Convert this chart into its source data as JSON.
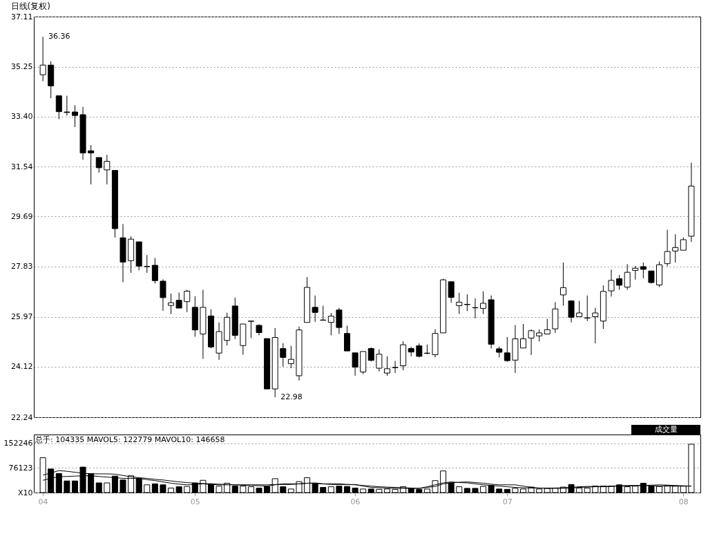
{
  "chart_data": [
    {
      "type": "candlestick",
      "title": "日线(复权)",
      "categories": [
        "04",
        null,
        null,
        null,
        null,
        null,
        null,
        null,
        null,
        null,
        null,
        null,
        null,
        null,
        null,
        null,
        null,
        null,
        null,
        "05",
        null,
        null,
        null,
        null,
        null,
        null,
        null,
        null,
        null,
        null,
        null,
        null,
        null,
        null,
        null,
        null,
        null,
        null,
        null,
        "06",
        null,
        null,
        null,
        null,
        null,
        null,
        null,
        null,
        null,
        null,
        null,
        null,
        null,
        null,
        null,
        null,
        null,
        null,
        "07",
        null,
        null,
        null,
        null,
        null,
        null,
        null,
        null,
        null,
        null,
        null,
        null,
        null,
        null,
        null,
        null,
        null,
        null,
        null,
        null,
        null,
        "08",
        null
      ],
      "ohlc": [
        [
          34.95,
          36.36,
          34.71,
          35.31
        ],
        [
          35.31,
          35.45,
          34.08,
          34.54
        ],
        [
          34.17,
          34.17,
          33.3,
          33.58
        ],
        [
          33.57,
          34.17,
          33.44,
          33.55
        ],
        [
          33.57,
          33.82,
          33.01,
          33.44
        ],
        [
          33.47,
          33.76,
          31.8,
          32.05
        ],
        [
          32.13,
          32.34,
          30.88,
          32.05
        ],
        [
          31.88,
          31.88,
          31.32,
          31.5
        ],
        [
          31.42,
          31.98,
          30.88,
          31.74
        ],
        [
          31.4,
          31.4,
          28.91,
          29.24
        ],
        [
          28.9,
          29.41,
          27.25,
          28.0
        ],
        [
          28.05,
          28.95,
          27.6,
          28.85
        ],
        [
          28.75,
          28.75,
          27.69,
          27.85
        ],
        [
          27.83,
          28.26,
          27.6,
          27.84
        ],
        [
          27.88,
          28.15,
          27.2,
          27.31
        ],
        [
          27.29,
          27.36,
          26.19,
          26.68
        ],
        [
          26.39,
          26.83,
          26.07,
          26.49
        ],
        [
          26.58,
          26.87,
          26.29,
          26.29
        ],
        [
          26.53,
          26.97,
          26.14,
          26.92
        ],
        [
          26.32,
          26.73,
          25.23,
          25.48
        ],
        [
          25.33,
          26.97,
          24.41,
          26.32
        ],
        [
          26.0,
          26.24,
          24.8,
          24.85
        ],
        [
          24.62,
          25.76,
          24.37,
          25.42
        ],
        [
          25.09,
          26.12,
          24.9,
          25.95
        ],
        [
          26.37,
          26.68,
          25.14,
          25.28
        ],
        [
          24.9,
          25.7,
          24.56,
          25.7
        ],
        [
          25.8,
          25.81,
          25.18,
          25.81
        ],
        [
          25.65,
          25.69,
          25.28,
          25.38
        ],
        [
          25.16,
          25.16,
          23.29,
          23.29
        ],
        [
          23.29,
          25.55,
          22.98,
          25.2
        ],
        [
          24.79,
          24.99,
          24.12,
          24.46
        ],
        [
          24.23,
          24.89,
          24.06,
          24.39
        ],
        [
          23.78,
          25.61,
          23.6,
          25.48
        ],
        [
          25.76,
          27.44,
          25.76,
          27.06
        ],
        [
          26.32,
          26.76,
          25.78,
          26.13
        ],
        [
          25.85,
          26.38,
          25.84,
          25.84
        ],
        [
          25.76,
          26.11,
          25.28,
          25.99
        ],
        [
          26.22,
          26.3,
          25.33,
          25.57
        ],
        [
          25.35,
          25.64,
          24.7,
          24.7
        ],
        [
          24.63,
          24.63,
          23.78,
          24.1
        ],
        [
          23.92,
          24.68,
          23.84,
          24.68
        ],
        [
          24.79,
          24.83,
          24.31,
          24.35
        ],
        [
          24.06,
          24.76,
          23.94,
          24.58
        ],
        [
          23.88,
          24.5,
          23.78,
          24.04
        ],
        [
          24.08,
          24.33,
          23.88,
          24.09
        ],
        [
          24.15,
          25.06,
          23.98,
          24.93
        ],
        [
          24.79,
          24.85,
          24.5,
          24.66
        ],
        [
          24.89,
          24.98,
          24.46,
          24.5
        ],
        [
          24.61,
          24.94,
          24.58,
          24.62
        ],
        [
          24.56,
          25.51,
          24.46,
          25.35
        ],
        [
          25.37,
          27.38,
          25.37,
          27.34
        ],
        [
          27.27,
          27.27,
          26.49,
          26.69
        ],
        [
          26.38,
          26.86,
          26.07,
          26.51
        ],
        [
          26.43,
          26.8,
          26.18,
          26.42
        ],
        [
          26.31,
          26.65,
          25.91,
          26.3
        ],
        [
          26.28,
          26.91,
          26.07,
          26.47
        ],
        [
          26.6,
          26.76,
          24.79,
          24.95
        ],
        [
          24.78,
          24.86,
          24.46,
          24.65
        ],
        [
          24.63,
          25.22,
          24.3,
          24.34
        ],
        [
          24.36,
          25.66,
          23.88,
          25.15
        ],
        [
          24.81,
          25.7,
          24.81,
          25.15
        ],
        [
          25.18,
          25.5,
          24.55,
          25.45
        ],
        [
          25.26,
          25.5,
          25.05,
          25.37
        ],
        [
          25.33,
          25.89,
          25.33,
          25.49
        ],
        [
          25.52,
          26.51,
          25.37,
          26.26
        ],
        [
          26.78,
          27.98,
          26.38,
          27.05
        ],
        [
          26.56,
          26.56,
          25.76,
          25.95
        ],
        [
          25.97,
          26.56,
          25.97,
          26.11
        ],
        [
          25.92,
          26.76,
          25.81,
          25.93
        ],
        [
          25.97,
          26.3,
          24.98,
          26.11
        ],
        [
          25.81,
          27.13,
          25.52,
          26.91
        ],
        [
          26.93,
          27.72,
          26.72,
          27.32
        ],
        [
          27.38,
          27.52,
          26.97,
          27.14
        ],
        [
          27.07,
          27.92,
          26.97,
          27.62
        ],
        [
          27.69,
          27.86,
          27.35,
          27.77
        ],
        [
          27.83,
          27.98,
          27.4,
          27.73
        ],
        [
          27.67,
          27.67,
          27.2,
          27.24
        ],
        [
          27.15,
          28.02,
          27.07,
          27.9
        ],
        [
          27.94,
          29.2,
          27.84,
          28.39
        ],
        [
          28.41,
          29.03,
          27.98,
          28.54
        ],
        [
          28.44,
          28.91,
          28.44,
          28.83
        ],
        [
          28.96,
          31.69,
          28.75,
          30.82
        ]
      ],
      "color": "#000000",
      "ylim": [
        22.24,
        37.11
      ],
      "yticks": [
        {
          "value": 22.24,
          "label": "22.24"
        },
        {
          "value": 24.12,
          "label": "24.12"
        },
        {
          "value": 25.97,
          "label": "25.97"
        },
        {
          "value": 27.83,
          "label": "27.83"
        },
        {
          "value": 29.69,
          "label": "29.69"
        },
        {
          "value": 31.54,
          "label": "31.54"
        },
        {
          "value": 33.4,
          "label": "33.40"
        },
        {
          "value": 35.25,
          "label": "35.25"
        },
        {
          "value": 37.11,
          "label": "37.11"
        }
      ],
      "grid": "y",
      "tick_labels": "y",
      "annotations": [
        "36.36",
        "22.98"
      ]
    },
    {
      "type": "bar",
      "categories": [
        "04",
        null,
        null,
        null,
        null,
        null,
        null,
        null,
        null,
        null,
        null,
        null,
        null,
        null,
        null,
        null,
        null,
        null,
        null,
        "05",
        null,
        null,
        null,
        null,
        null,
        null,
        null,
        null,
        null,
        null,
        null,
        null,
        null,
        null,
        null,
        null,
        null,
        null,
        null,
        "06",
        null,
        null,
        null,
        null,
        null,
        null,
        null,
        null,
        null,
        null,
        null,
        null,
        null,
        null,
        null,
        null,
        null,
        null,
        "07",
        null,
        null,
        null,
        null,
        null,
        null,
        null,
        null,
        null,
        null,
        null,
        null,
        null,
        null,
        null,
        null,
        null,
        null,
        null,
        null,
        null,
        "08",
        null
      ],
      "series": [
        {
          "type": "bar",
          "values": [
            108000,
            73000,
            59000,
            36000,
            36000,
            79000,
            59000,
            30000,
            30000,
            51000,
            39000,
            52000,
            44000,
            24000,
            27000,
            24000,
            14000,
            18000,
            19000,
            30000,
            38000,
            27000,
            20000,
            29000,
            20000,
            20000,
            18000,
            14000,
            19000,
            43000,
            18000,
            11000,
            34000,
            46000,
            27000,
            16000,
            18000,
            20000,
            19000,
            14000,
            11000,
            11000,
            10000,
            11000,
            10000,
            18000,
            13000,
            10000,
            11000,
            37000,
            67000,
            30000,
            18000,
            13000,
            13000,
            19000,
            22000,
            11000,
            10000,
            13000,
            11000,
            17000,
            11000,
            13000,
            14000,
            17000,
            25000,
            14000,
            14000,
            20000,
            20000,
            20000,
            24000,
            18000,
            20000,
            29000,
            20000,
            19000,
            22000,
            20000,
            20000,
            150000
          ],
          "colors": [
            "#ffffff",
            "#000000",
            "#000000",
            "#000000",
            "#000000",
            "#000000",
            "#000000",
            "#000000",
            "#ffffff",
            "#000000",
            "#000000",
            "#ffffff",
            "#000000",
            "#ffffff",
            "#000000",
            "#000000",
            "#ffffff",
            "#000000",
            "#ffffff",
            "#000000",
            "#ffffff",
            "#000000",
            "#ffffff",
            "#ffffff",
            "#000000",
            "#ffffff",
            "#ffffff",
            "#000000",
            "#000000",
            "#ffffff",
            "#000000",
            "#ffffff",
            "#ffffff",
            "#ffffff",
            "#000000",
            "#000000",
            "#ffffff",
            "#000000",
            "#000000",
            "#000000",
            "#ffffff",
            "#000000",
            "#ffffff",
            "#ffffff",
            "#ffffff",
            "#ffffff",
            "#000000",
            "#000000",
            "#ffffff",
            "#ffffff",
            "#ffffff",
            "#000000",
            "#ffffff",
            "#000000",
            "#000000",
            "#ffffff",
            "#000000",
            "#000000",
            "#000000",
            "#ffffff",
            "#ffffff",
            "#ffffff",
            "#ffffff",
            "#ffffff",
            "#ffffff",
            "#ffffff",
            "#000000",
            "#ffffff",
            "#ffffff",
            "#ffffff",
            "#ffffff",
            "#ffffff",
            "#000000",
            "#ffffff",
            "#ffffff",
            "#000000",
            "#000000",
            "#ffffff",
            "#ffffff",
            "#ffffff",
            "#ffffff",
            "#ffffff"
          ]
        },
        {
          "type": "line",
          "color": "#000000",
          "values": [
            54000,
            61000,
            68000,
            66000,
            63000,
            60000,
            58000,
            58000,
            58000,
            57000,
            53000,
            49000,
            46000,
            44000,
            41000,
            39000,
            36000,
            33000,
            31000,
            29000,
            28000,
            27000,
            26000,
            25000,
            24000,
            24000,
            24000,
            24000,
            24000,
            25000,
            25000,
            25000,
            27000,
            29000,
            28000,
            27000,
            27000,
            27000,
            25000,
            24000,
            22000,
            20000,
            18000,
            17000,
            16000,
            15000,
            14000,
            13000,
            16000,
            19000,
            27000,
            30000,
            32000,
            33000,
            31000,
            29000,
            26000,
            24000,
            24000,
            24000,
            20000,
            16000,
            14000,
            13000,
            13000,
            13000,
            14000,
            16000,
            17000,
            18000,
            18000,
            19000,
            20000,
            20000,
            21000,
            22000,
            21000,
            20000,
            20000,
            20000,
            20000,
            20000
          ]
        },
        {
          "type": "line",
          "color": "#000000",
          "values": [
            38000,
            44000,
            49000,
            50000,
            51000,
            52000,
            52000,
            50000,
            48000,
            46000,
            44000,
            44000,
            44000,
            40000,
            37000,
            33000,
            29000,
            26000,
            24000,
            25000,
            27000,
            25000,
            24000,
            24000,
            24000,
            23000,
            22000,
            21000,
            20000,
            24000,
            27000,
            27000,
            27000,
            29000,
            30000,
            27000,
            25000,
            25000,
            25000,
            25000,
            20000,
            16000,
            15000,
            14000,
            13000,
            13000,
            13000,
            13000,
            18000,
            24000,
            30000,
            33000,
            31000,
            30000,
            27000,
            24000,
            22000,
            20000,
            18000,
            16000,
            15000,
            14000,
            14000,
            14000,
            14000,
            15000,
            16000,
            18000,
            19000,
            19000,
            19000,
            20000,
            21000,
            22000,
            22000,
            22000,
            23000,
            24000,
            23000,
            22000,
            21000,
            20000
          ]
        }
      ],
      "ylim": [
        0,
        180000
      ],
      "yticks": [
        {
          "value": 0,
          "label": "X10"
        },
        76123,
        152246
      ],
      "grid": "y",
      "annotations": [
        "总手: 104335 MAVOL5: 122779 MAVOL10: 146658",
        "成交量"
      ]
    }
  ]
}
